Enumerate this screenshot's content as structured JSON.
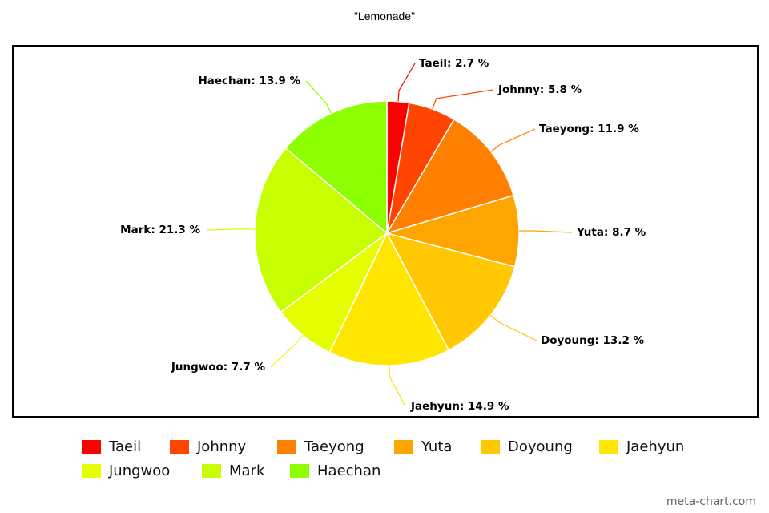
{
  "chart_data": {
    "type": "pie",
    "title": "\"Lemonade\"",
    "slices": [
      {
        "name": "Taeil",
        "value": 2.7,
        "label": "Taeil: 2.7 %",
        "color": "#ff0000"
      },
      {
        "name": "Johnny",
        "value": 5.8,
        "label": "Johnny: 5.8 %",
        "color": "#ff4500"
      },
      {
        "name": "Taeyong",
        "value": 11.9,
        "label": "Taeyong: 11.9 %",
        "color": "#ff7f00"
      },
      {
        "name": "Yuta",
        "value": 8.7,
        "label": "Yuta: 8.7 %",
        "color": "#ffa500"
      },
      {
        "name": "Doyoung",
        "value": 13.2,
        "label": "Doyoung: 13.2 %",
        "color": "#ffc800"
      },
      {
        "name": "Jaehyun",
        "value": 14.9,
        "label": "Jaehyun: 14.9 %",
        "color": "#ffe600"
      },
      {
        "name": "Jungwoo",
        "value": 7.7,
        "label": "Jungwoo: 7.7 %",
        "color": "#e6ff00"
      },
      {
        "name": "Mark",
        "value": 21.3,
        "label": "Mark: 21.3 %",
        "color": "#c8ff00"
      },
      {
        "name": "Haechan",
        "value": 13.9,
        "label": "Haechan: 13.9 %",
        "color": "#8cff00"
      }
    ],
    "legend_position": "bottom"
  },
  "watermark": "meta-chart.com"
}
